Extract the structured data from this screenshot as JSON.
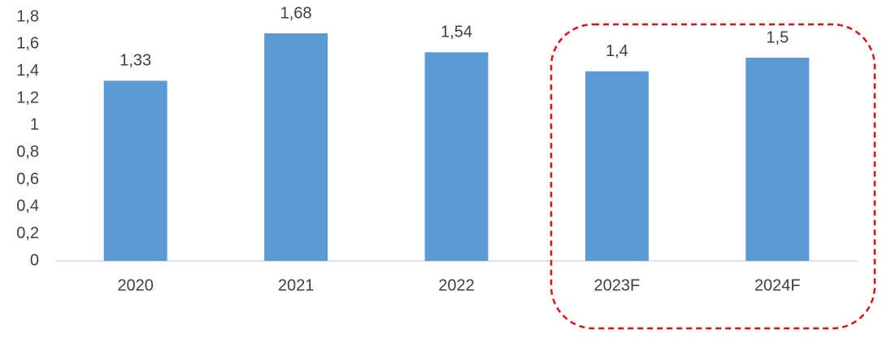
{
  "chart_data": {
    "type": "bar",
    "categories": [
      "2020",
      "2021",
      "2022",
      "2023F",
      "2024F"
    ],
    "values": [
      1.33,
      1.68,
      1.54,
      1.4,
      1.5
    ],
    "value_labels": [
      "1,33",
      "1,68",
      "1,54",
      "1,4",
      "1,5"
    ],
    "color": "#5b9bd5",
    "ylim": [
      0,
      1.8
    ],
    "yticks": [
      0,
      {
        "value": 0.2,
        "label": "0,2"
      },
      {
        "value": 0.4,
        "label": "0,4"
      },
      {
        "value": 0.6,
        "label": "0,6"
      },
      {
        "value": 0.8,
        "label": "0,8"
      },
      1,
      {
        "value": 1.2,
        "label": "1,2"
      },
      {
        "value": 1.4,
        "label": "1,4"
      },
      {
        "value": 1.6,
        "label": "1,6"
      },
      {
        "value": 1.8,
        "label": "1,8"
      }
    ],
    "grid": false
  }
}
